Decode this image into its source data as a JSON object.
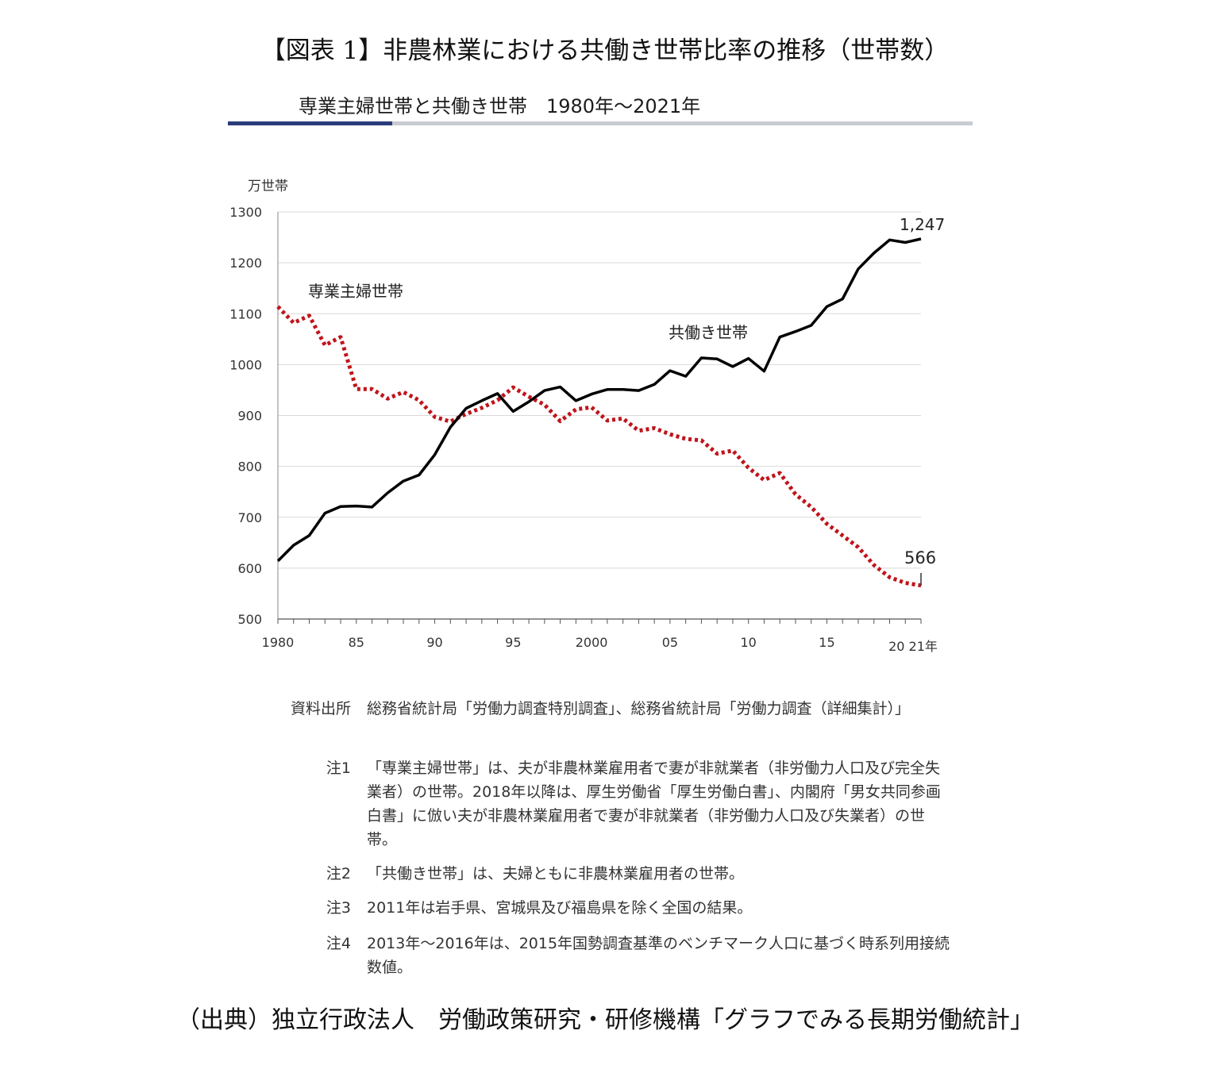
{
  "figure_title": "【図表 1】非農林業における共働き世帯比率の推移（世帯数）",
  "subtitle": "専業主婦世帯と共働き世帯　1980年〜2021年",
  "chart_data": {
    "type": "line",
    "y_unit": "万世帯",
    "ylim": [
      500,
      1300
    ],
    "y_ticks": [
      500,
      600,
      700,
      800,
      900,
      1000,
      1100,
      1200,
      1300
    ],
    "x_range": [
      1980,
      2021
    ],
    "x_tick_labels": [
      {
        "year": 1980,
        "label": "1980"
      },
      {
        "year": 1985,
        "label": "85"
      },
      {
        "year": 1990,
        "label": "90"
      },
      {
        "year": 1995,
        "label": "95"
      },
      {
        "year": 2000,
        "label": "2000"
      },
      {
        "year": 2005,
        "label": "05"
      },
      {
        "year": 2010,
        "label": "10"
      },
      {
        "year": 2015,
        "label": "15"
      },
      {
        "year": 2021,
        "label": "20 21年"
      }
    ],
    "grid": true,
    "x": [
      1980,
      1981,
      1982,
      1983,
      1984,
      1985,
      1986,
      1987,
      1988,
      1989,
      1990,
      1991,
      1992,
      1993,
      1994,
      1995,
      1996,
      1997,
      1998,
      1999,
      2000,
      2001,
      2002,
      2003,
      2004,
      2005,
      2006,
      2007,
      2008,
      2009,
      2010,
      2011,
      2012,
      2013,
      2014,
      2015,
      2016,
      2017,
      2018,
      2019,
      2020,
      2021
    ],
    "series": [
      {
        "name": "専業主婦世帯",
        "color": "#c0141b",
        "style": "dotted",
        "values": [
          1114,
          1082,
          1096,
          1038,
          1054,
          952,
          952,
          933,
          946,
          930,
          897,
          888,
          903,
          915,
          930,
          955,
          937,
          921,
          889,
          912,
          916,
          890,
          894,
          870,
          875,
          863,
          854,
          851,
          825,
          831,
          797,
          773,
          787,
          745,
          720,
          687,
          664,
          641,
          606,
          582,
          571,
          566
        ]
      },
      {
        "name": "共働き世帯",
        "color": "#000000",
        "style": "solid",
        "values": [
          614,
          645,
          664,
          708,
          721,
          722,
          720,
          748,
          771,
          783,
          823,
          877,
          914,
          929,
          943,
          908,
          927,
          949,
          956,
          929,
          942,
          951,
          951,
          949,
          961,
          988,
          977,
          1013,
          1011,
          996,
          1012,
          987,
          1054,
          1065,
          1077,
          1114,
          1129,
          1188,
          1219,
          1245,
          1240,
          1247
        ]
      }
    ],
    "annotations": {
      "end_value_working": "1,247",
      "end_value_housewife": "566"
    }
  },
  "notes": [
    {
      "key": "資料出所",
      "text": "総務省統計局「労働力調査特別調査」、総務省統計局「労働力調査（詳細集計）」"
    },
    {
      "key": "注1",
      "text": "「専業主婦世帯」は、夫が非農林業雇用者で妻が非就業者（非労働力人口及び完全失業者）の世帯。2018年以降は、厚生労働省「厚生労働白書」、内閣府「男女共同参画白書」に倣い夫が非農林業雇用者で妻が非就業者（非労働力人口及び失業者）の世帯。"
    },
    {
      "key": "注2",
      "text": "「共働き世帯」は、夫婦ともに非農林業雇用者の世帯。"
    },
    {
      "key": "注3",
      "text": "2011年は岩手県、宮城県及び福島県を除く全国の結果。"
    },
    {
      "key": "注4",
      "text": "2013年〜2016年は、2015年国勢調査基準のベンチマーク人口に基づく時系列用接続数値。"
    }
  ],
  "source": "（出典）独立行政法人　労働政策研究・研修機構「グラフでみる長期労働統計」"
}
